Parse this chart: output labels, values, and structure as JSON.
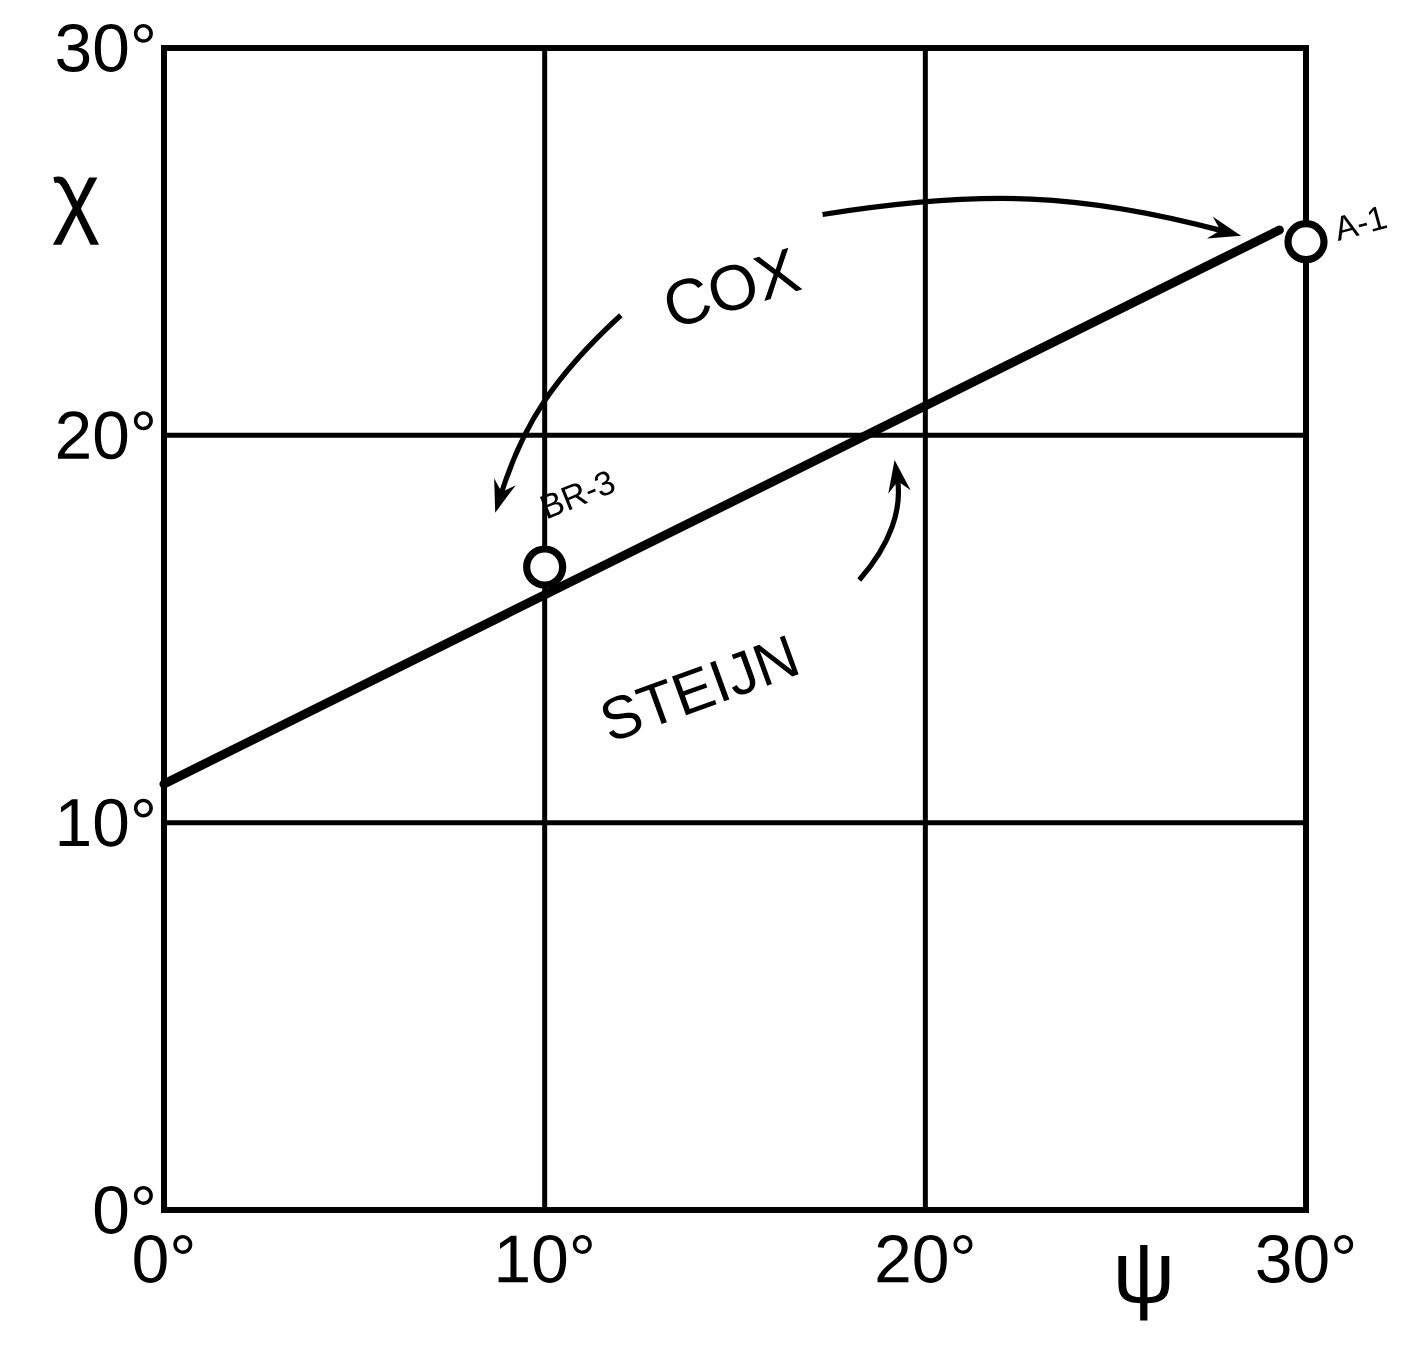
{
  "chart_data": {
    "type": "scatter",
    "xlabel": "ψ",
    "ylabel": "χ",
    "xlim": [
      0,
      30
    ],
    "ylim": [
      0,
      30
    ],
    "xticks": [
      {
        "value": 0,
        "label": "0°"
      },
      {
        "value": 10,
        "label": "10°"
      },
      {
        "value": 20,
        "label": "20°"
      },
      {
        "value": 30,
        "label": "30°"
      }
    ],
    "yticks": [
      {
        "value": 0,
        "label": "0°"
      },
      {
        "value": 10,
        "label": "10°"
      },
      {
        "value": 20,
        "label": "20°"
      },
      {
        "value": 30,
        "label": "30°"
      }
    ],
    "grid": true,
    "legend": false,
    "series": [
      {
        "name": "STEIJN",
        "type": "line",
        "color": "#000000",
        "x": [
          0,
          29.3
        ],
        "values": [
          11,
          25.3
        ],
        "marker": "none"
      },
      {
        "color": "#000000",
        "x": [
          10,
          30
        ],
        "values": [
          16.6,
          25
        ],
        "marker": "circle"
      }
    ],
    "annotations": [
      "COX",
      {
        "text": "BR-3",
        "x": 10,
        "y": 16.6
      },
      {
        "text": "A-1",
        "x": 30,
        "y": 25
      }
    ]
  }
}
